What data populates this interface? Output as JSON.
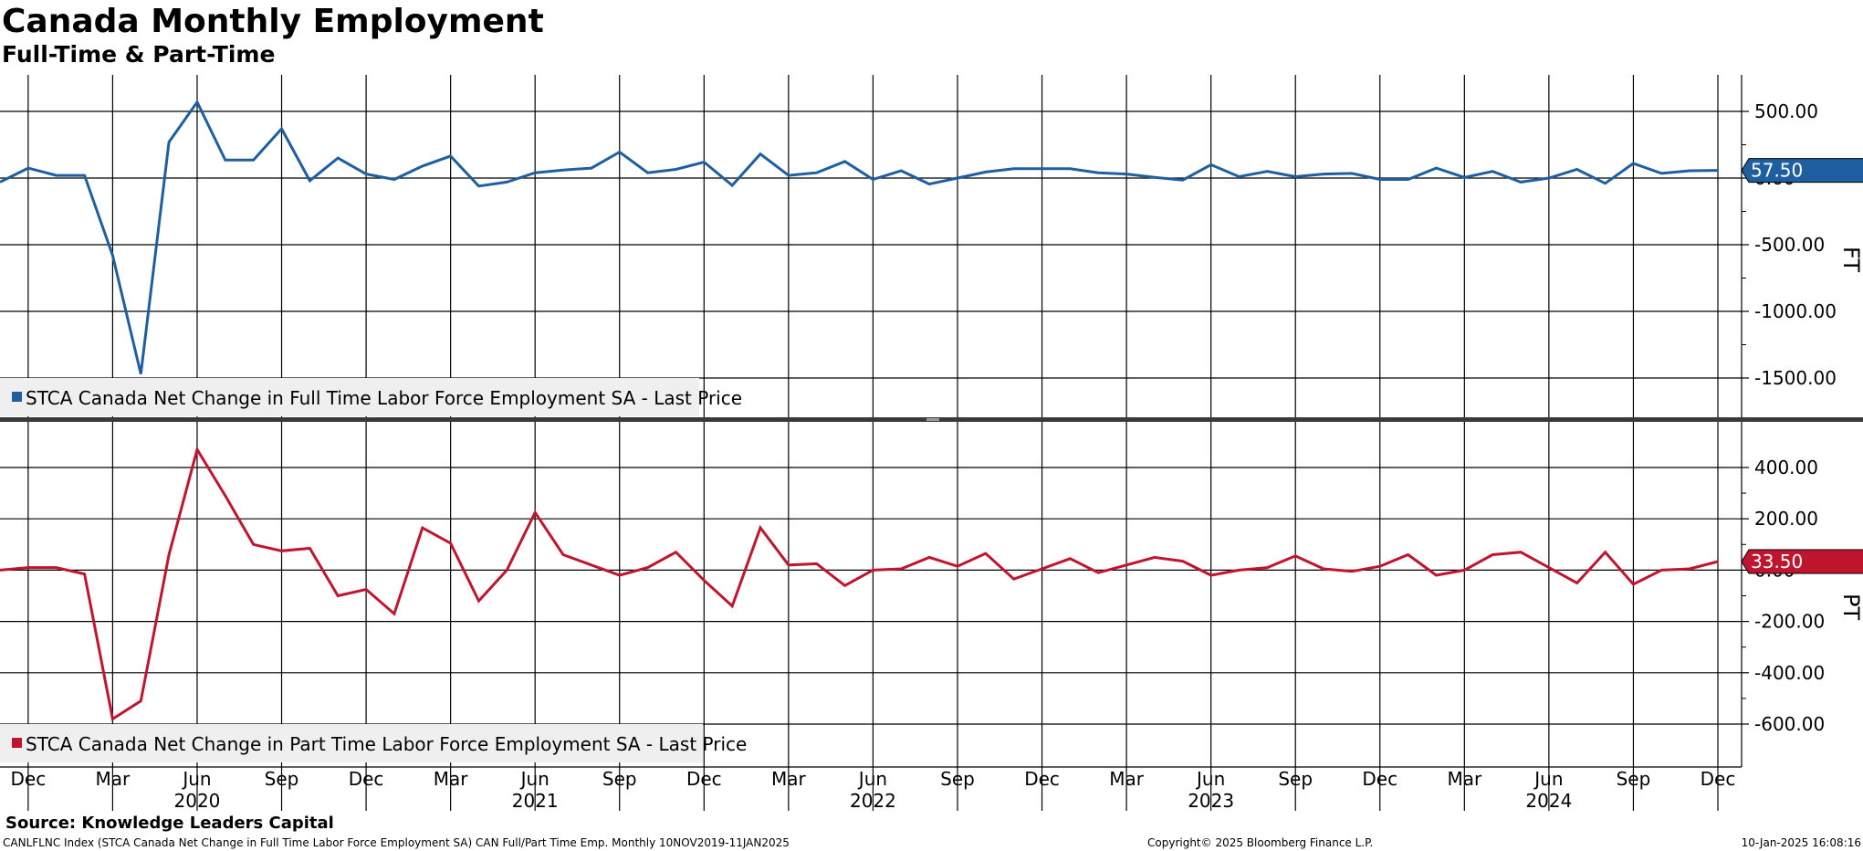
{
  "title": "Canada Monthly Employment",
  "subtitle": "Full-Time & Part-Time",
  "source": "Source: Knowledge Leaders Capital",
  "footer": {
    "index_info": "CANLFLNC Index (STCA Canada Net Change in Full Time Labor Force Employment SA) CAN Full/Part Time Emp.  Monthly 10NOV2019-11JAN2025",
    "copyright": "Copyright© 2025 Bloomberg Finance L.P.",
    "timestamp": "10-Jan-2025 16:08:16"
  },
  "colors": {
    "full_time": "#1f5fa0",
    "part_time": "#c0152f",
    "grid": "#000000",
    "legend_bg": "#efefef",
    "separator": "#3a3a3a"
  },
  "chart_data": [
    {
      "type": "line",
      "axis_side_label": "FT",
      "legend": "STCA Canada Net Change in Full Time Labor Force Employment SA - Last Price",
      "legend_position": "bottom-left",
      "last_value_label": "57.50",
      "ylim": [
        -1800,
        580
      ],
      "yticks": [
        500,
        0,
        -500,
        -1000,
        -1500
      ],
      "ytick_labels": [
        "500.00",
        "0.00",
        "-500.00",
        "-1000.00",
        "-1500.00"
      ],
      "grid": true,
      "series": [
        {
          "name": "STCA Canada Net Change in Full Time Labor Force Employment SA - Last Price",
          "values": [
            -30,
            75,
            20,
            20,
            -580,
            -1470,
            270,
            570,
            135,
            135,
            370,
            -20,
            150,
            30,
            -10,
            90,
            165,
            -60,
            -30,
            40,
            60,
            75,
            195,
            40,
            65,
            120,
            -55,
            180,
            20,
            40,
            125,
            -10,
            55,
            -45,
            0,
            45,
            70,
            70,
            70,
            40,
            30,
            5,
            -15,
            100,
            10,
            50,
            10,
            30,
            35,
            -10,
            -10,
            75,
            5,
            50,
            -30,
            0,
            65,
            -40,
            110,
            35,
            55,
            57.5
          ]
        }
      ]
    },
    {
      "type": "line",
      "axis_side_label": "PT",
      "legend": "STCA Canada Net Change in Part Time Labor Force Employment SA - Last Price",
      "legend_position": "bottom-left",
      "last_value_label": "33.50",
      "ylim": [
        -760,
        500
      ],
      "yticks": [
        400,
        200,
        0,
        -200,
        -400,
        -600
      ],
      "ytick_labels": [
        "400.00",
        "200.00",
        "0.00",
        "-200.00",
        "-400.00",
        "-600.00"
      ],
      "grid": true,
      "series": [
        {
          "name": "STCA Canada Net Change in Part Time Labor Force Employment SA - Last Price",
          "values": [
            0,
            10,
            10,
            -15,
            -580,
            -510,
            60,
            470,
            290,
            100,
            75,
            85,
            -100,
            -75,
            -170,
            165,
            105,
            -120,
            0,
            225,
            60,
            20,
            -20,
            10,
            70,
            -40,
            -140,
            165,
            20,
            25,
            -60,
            0,
            5,
            50,
            15,
            65,
            -35,
            5,
            45,
            -10,
            20,
            50,
            35,
            -20,
            0,
            10,
            55,
            5,
            -5,
            15,
            60,
            -20,
            0,
            60,
            70,
            10,
            -50,
            70,
            -55,
            0,
            5,
            33.5
          ]
        }
      ]
    }
  ],
  "x_axis": {
    "month_labels": [
      "Dec",
      "Mar",
      "Jun",
      "Sep",
      "Dec",
      "Mar",
      "Jun",
      "Sep",
      "Dec",
      "Mar",
      "Jun",
      "Sep",
      "Dec",
      "Mar",
      "Jun",
      "Sep",
      "Dec",
      "Mar",
      "Jun",
      "Sep",
      "Dec"
    ],
    "year_labels": [
      "2020",
      "2021",
      "2022",
      "2023",
      "2024"
    ]
  }
}
